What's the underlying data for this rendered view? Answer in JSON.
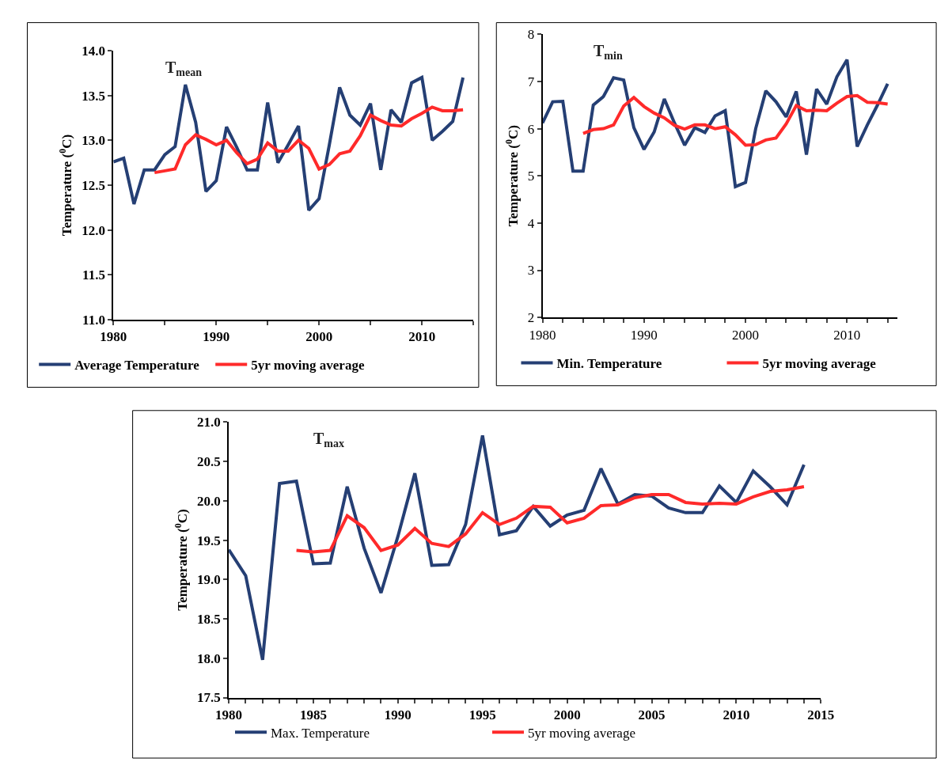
{
  "chart_data": [
    {
      "type": "line",
      "title": "T$_{mean}$",
      "ylabel": "Temperature ($^{0}$C)",
      "legend": "bottom",
      "marker": "none",
      "line_style": "solid",
      "xlim": [
        1980,
        2015
      ],
      "xticks": [
        1980,
        {
          "value": 1985,
          "label": null
        },
        1990,
        {
          "value": 1995,
          "label": null
        },
        2000,
        {
          "value": 2005,
          "label": null
        },
        2010,
        {
          "value": 2015,
          "label": null
        }
      ],
      "ylim": [
        11.0,
        14.0
      ],
      "yticks": [
        {
          "value": 11,
          "label": "11.0"
        },
        11.5,
        {
          "value": 12,
          "label": "12.0"
        },
        12.5,
        {
          "value": 13,
          "label": "13.0"
        },
        13.5,
        {
          "value": 14,
          "label": "14.0"
        }
      ],
      "series": [
        {
          "name": "Average Temperature",
          "color": "#253f74",
          "x": [
            1980,
            1981,
            1982,
            1983,
            1984,
            1985,
            1986,
            1987,
            1988,
            1989,
            1990,
            1991,
            1992,
            1993,
            1994,
            1995,
            1996,
            1997,
            1998,
            1999,
            2000,
            2001,
            2002,
            2003,
            2004,
            2005,
            2006,
            2007,
            2008,
            2009,
            2010,
            2011,
            2012,
            2013,
            2014
          ],
          "values": [
            12.76,
            12.8,
            12.29,
            12.67,
            12.67,
            12.84,
            12.93,
            13.62,
            13.2,
            12.43,
            12.55,
            13.15,
            12.92,
            12.67,
            12.67,
            13.42,
            12.75,
            12.95,
            13.16,
            12.22,
            12.35,
            12.95,
            13.59,
            13.28,
            13.17,
            13.41,
            12.67,
            13.34,
            13.2,
            13.64,
            13.7,
            13.0,
            13.1,
            13.21,
            13.7
          ]
        },
        {
          "name": "5yr moving average",
          "color": "#ff2a2a",
          "x": [
            1984,
            1985,
            1986,
            1987,
            1988,
            1989,
            1990,
            1991,
            1992,
            1993,
            1994,
            1995,
            1996,
            1997,
            1998,
            1999,
            2000,
            2001,
            2002,
            2003,
            2004,
            2005,
            2006,
            2007,
            2008,
            2009,
            2010,
            2011,
            2012,
            2013,
            2014
          ],
          "values": [
            12.64,
            12.66,
            12.68,
            12.95,
            13.06,
            13.01,
            12.95,
            13.0,
            12.86,
            12.74,
            12.79,
            12.97,
            12.88,
            12.88,
            13.0,
            12.91,
            12.68,
            12.73,
            12.85,
            12.88,
            13.05,
            13.28,
            13.22,
            13.17,
            13.16,
            13.24,
            13.3,
            13.37,
            13.33,
            13.33,
            13.34
          ]
        }
      ]
    },
    {
      "type": "line",
      "title": "T$_{min}$",
      "ylabel": "Temperature ($^{0}$C)",
      "legend": "bottom",
      "marker": "none",
      "line_style": "solid",
      "xlim": [
        1980,
        2015
      ],
      "xticks": [
        1980,
        {
          "value": 1982,
          "label": null
        },
        {
          "value": 1984,
          "label": null
        },
        {
          "value": 1986,
          "label": null
        },
        {
          "value": 1988,
          "label": null
        },
        1990,
        {
          "value": 1992,
          "label": null
        },
        {
          "value": 1994,
          "label": null
        },
        {
          "value": 1996,
          "label": null
        },
        {
          "value": 1998,
          "label": null
        },
        2000,
        {
          "value": 2002,
          "label": null
        },
        {
          "value": 2004,
          "label": null
        },
        {
          "value": 2006,
          "label": null
        },
        {
          "value": 2008,
          "label": null
        },
        2010,
        {
          "value": 2012,
          "label": null
        },
        {
          "value": 2014,
          "label": null
        }
      ],
      "ylim": [
        2,
        8
      ],
      "yticks": [
        2,
        3,
        4,
        5,
        6,
        7,
        8
      ],
      "series": [
        {
          "name": "Min. Temperature",
          "color": "#253f74",
          "x": [
            1980,
            1981,
            1982,
            1983,
            1984,
            1985,
            1986,
            1987,
            1988,
            1989,
            1990,
            1991,
            1992,
            1993,
            1994,
            1995,
            1996,
            1997,
            1998,
            1999,
            2000,
            2001,
            2002,
            2003,
            2004,
            2005,
            2006,
            2007,
            2008,
            2009,
            2010,
            2011,
            2012,
            2013,
            2014
          ],
          "values": [
            6.12,
            6.57,
            6.58,
            5.1,
            5.1,
            6.5,
            6.68,
            7.08,
            7.03,
            6.02,
            5.56,
            5.93,
            6.63,
            6.12,
            5.65,
            6.02,
            5.92,
            6.27,
            6.38,
            4.77,
            4.86,
            6.0,
            6.8,
            6.57,
            6.25,
            6.79,
            5.45,
            6.84,
            6.52,
            7.1,
            7.46,
            5.62,
            6.08,
            6.5,
            6.95
          ]
        },
        {
          "name": "5yr moving average",
          "color": "#ff2a2a",
          "x": [
            1984,
            1985,
            1986,
            1987,
            1988,
            1989,
            1990,
            1991,
            1992,
            1993,
            1994,
            1995,
            1996,
            1997,
            1998,
            1999,
            2000,
            2001,
            2002,
            2003,
            2004,
            2005,
            2006,
            2007,
            2008,
            2009,
            2010,
            2011,
            2012,
            2013,
            2014
          ],
          "values": [
            5.9,
            5.98,
            6.0,
            6.08,
            6.48,
            6.66,
            6.47,
            6.33,
            6.23,
            6.07,
            5.99,
            6.08,
            6.08,
            6.0,
            6.04,
            5.87,
            5.65,
            5.66,
            5.76,
            5.8,
            6.1,
            6.49,
            6.38,
            6.39,
            6.38,
            6.54,
            6.68,
            6.7,
            6.56,
            6.55,
            6.52
          ]
        }
      ]
    },
    {
      "type": "line",
      "title": "T$_{max}$",
      "ylabel": "Temperature ($^{0}$C)",
      "legend": "bottom",
      "marker": "none",
      "line_style": "solid",
      "xlim": [
        1980,
        2015
      ],
      "xticks": [
        1980,
        {
          "value": 1981,
          "label": null
        },
        {
          "value": 1982,
          "label": null
        },
        {
          "value": 1983,
          "label": null
        },
        {
          "value": 1984,
          "label": null
        },
        1985,
        {
          "value": 1986,
          "label": null
        },
        {
          "value": 1987,
          "label": null
        },
        {
          "value": 1988,
          "label": null
        },
        {
          "value": 1989,
          "label": null
        },
        1990,
        {
          "value": 1991,
          "label": null
        },
        {
          "value": 1992,
          "label": null
        },
        {
          "value": 1993,
          "label": null
        },
        {
          "value": 1994,
          "label": null
        },
        1995,
        {
          "value": 1996,
          "label": null
        },
        {
          "value": 1997,
          "label": null
        },
        {
          "value": 1998,
          "label": null
        },
        {
          "value": 1999,
          "label": null
        },
        2000,
        {
          "value": 2001,
          "label": null
        },
        {
          "value": 2002,
          "label": null
        },
        {
          "value": 2003,
          "label": null
        },
        {
          "value": 2004,
          "label": null
        },
        2005,
        {
          "value": 2006,
          "label": null
        },
        {
          "value": 2007,
          "label": null
        },
        {
          "value": 2008,
          "label": null
        },
        {
          "value": 2009,
          "label": null
        },
        2010,
        {
          "value": 2011,
          "label": null
        },
        {
          "value": 2012,
          "label": null
        },
        {
          "value": 2013,
          "label": null
        },
        {
          "value": 2014,
          "label": null
        },
        2015
      ],
      "ylim": [
        17.5,
        21.0
      ],
      "yticks": [
        17.5,
        {
          "value": 18,
          "label": "18.0"
        },
        18.5,
        {
          "value": 19,
          "label": "19.0"
        },
        19.5,
        {
          "value": 20,
          "label": "20.0"
        },
        20.5,
        {
          "value": 21,
          "label": "21.0"
        }
      ],
      "series": [
        {
          "name": "Max. Temperature",
          "color": "#253f74",
          "x": [
            1980,
            1981,
            1982,
            1983,
            1984,
            1985,
            1986,
            1987,
            1988,
            1989,
            1990,
            1991,
            1992,
            1993,
            1994,
            1995,
            1996,
            1997,
            1998,
            1999,
            2000,
            2001,
            2002,
            2003,
            2004,
            2005,
            2006,
            2007,
            2008,
            2009,
            2010,
            2011,
            2012,
            2013,
            2014
          ],
          "values": [
            19.38,
            19.05,
            17.98,
            20.22,
            20.25,
            19.2,
            19.21,
            20.18,
            19.4,
            18.83,
            19.55,
            20.35,
            19.18,
            19.19,
            19.7,
            20.83,
            19.57,
            19.62,
            19.93,
            19.68,
            19.82,
            19.88,
            20.41,
            19.96,
            20.08,
            20.06,
            19.91,
            19.85,
            19.85,
            20.19,
            19.98,
            20.38,
            20.18,
            19.95,
            20.46
          ]
        },
        {
          "name": "5yr moving average",
          "color": "#ff2a2a",
          "x": [
            1984,
            1985,
            1986,
            1987,
            1988,
            1989,
            1990,
            1991,
            1992,
            1993,
            1994,
            1995,
            1996,
            1997,
            1998,
            1999,
            2000,
            2001,
            2002,
            2003,
            2004,
            2005,
            2006,
            2007,
            2008,
            2009,
            2010,
            2011,
            2012,
            2013,
            2014
          ],
          "values": [
            19.37,
            19.35,
            19.37,
            19.81,
            19.66,
            19.37,
            19.44,
            19.65,
            19.46,
            19.42,
            19.58,
            19.85,
            19.7,
            19.78,
            19.93,
            19.92,
            19.72,
            19.78,
            19.94,
            19.95,
            20.04,
            20.08,
            20.08,
            19.98,
            19.96,
            19.97,
            19.96,
            20.05,
            20.12,
            20.14,
            20.18
          ]
        }
      ]
    }
  ]
}
